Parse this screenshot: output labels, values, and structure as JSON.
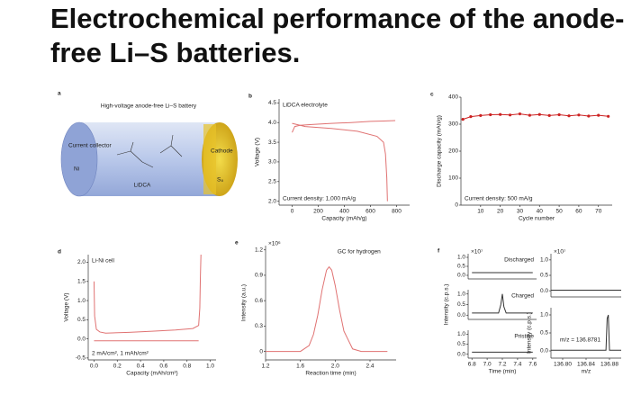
{
  "title": "Electrochemical performance of the anode-free Li–S batteries.",
  "diagram": {
    "panel": "a",
    "title": "High-voltage anode-free Li–S battery",
    "collector": "Current collector",
    "collector_metal": "Ni",
    "cathode": "Cathode",
    "cathode_material": "S₈",
    "salt": "LiDCA"
  },
  "chart_data": [
    {
      "type": "line",
      "panel": "b",
      "title": "LiDCA electrolyte",
      "annotation": "Current density: 1,000 mA/g",
      "xlabel": "Capacity (mAh/g)",
      "ylabel": "Voltage (V)",
      "xlim": [
        -100,
        900
      ],
      "ylim": [
        1.9,
        4.6
      ],
      "xticks": [
        0,
        200,
        400,
        600,
        800
      ],
      "yticks": [
        {
          "value": 2,
          "label": "2.0"
        },
        2.5,
        {
          "value": 3,
          "label": "3.0"
        },
        3.5,
        {
          "value": 4,
          "label": "4.0"
        },
        4.5
      ],
      "series": [
        {
          "color": "#e07272",
          "x": [
            0,
            20,
            60,
            150,
            300,
            450,
            600,
            700,
            790
          ],
          "values": [
            3.75,
            3.9,
            3.93,
            3.95,
            3.98,
            4.0,
            4.03,
            4.04,
            4.05
          ]
        },
        {
          "color": "#e07272",
          "x": [
            0,
            100,
            300,
            500,
            650,
            700,
            715,
            725,
            730
          ],
          "values": [
            3.98,
            3.9,
            3.85,
            3.78,
            3.65,
            3.5,
            3.2,
            2.6,
            2.0
          ]
        }
      ]
    },
    {
      "type": "line",
      "panel": "c",
      "annotation": "Current density: 500 mA/g",
      "xlabel": "Cycle number",
      "ylabel": "Discharge capacity (mAh/g)",
      "markers": true,
      "xlim": [
        0,
        77
      ],
      "ylim": [
        0,
        400
      ],
      "xticks": [
        10,
        20,
        30,
        40,
        50,
        60,
        70
      ],
      "yticks": [
        0,
        100,
        200,
        300,
        400
      ],
      "series": [
        {
          "color": "#cc2222",
          "x": [
            1,
            5,
            10,
            15,
            20,
            25,
            30,
            35,
            40,
            45,
            50,
            55,
            60,
            65,
            70,
            75
          ],
          "values": [
            318,
            328,
            332,
            335,
            336,
            334,
            338,
            333,
            336,
            332,
            335,
            331,
            334,
            330,
            333,
            329
          ]
        }
      ]
    },
    {
      "type": "line",
      "panel": "d",
      "title": "Li-Ni cell",
      "annotation": "2 mA/cm², 1 mAh/cm²",
      "xlabel": "Capacity (mAh/cm²)",
      "ylabel": "Voltage (V)",
      "xlim": [
        -0.05,
        1.05
      ],
      "ylim": [
        -0.55,
        2.2
      ],
      "xticks": [
        {
          "value": 0,
          "label": "0.0"
        },
        0.2,
        0.4,
        0.6,
        0.8,
        {
          "value": 1,
          "label": "1.0"
        }
      ],
      "yticks": [
        -0.5,
        {
          "value": 0,
          "label": "0.0"
        },
        0.5,
        {
          "value": 1,
          "label": "1.0"
        },
        1.5,
        {
          "value": 2,
          "label": "2.0"
        }
      ],
      "series": [
        {
          "color": "#e07272",
          "x": [
            0,
            0.005,
            0.02,
            0.05,
            0.1,
            0.3,
            0.5,
            0.7,
            0.85,
            0.9,
            0.91,
            0.915,
            0.92
          ],
          "values": [
            1.5,
            0.6,
            0.25,
            0.18,
            0.15,
            0.17,
            0.2,
            0.23,
            0.27,
            0.35,
            0.8,
            1.6,
            2.2
          ]
        },
        {
          "color": "#e07272",
          "x": [
            0,
            0.9
          ],
          "values": [
            -0.05,
            -0.05
          ]
        }
      ]
    },
    {
      "type": "line",
      "panel": "e",
      "title": "GC for hydrogen",
      "multiplier": "×10⁶",
      "xlabel": "Reaction time (min)",
      "ylabel": "Intensity (a.u.)",
      "xlim": [
        1.2,
        2.7
      ],
      "ylim": [
        -0.1,
        1.25
      ],
      "xticks": [
        1.2,
        1.6,
        {
          "value": 2,
          "label": "2.0"
        },
        2.4
      ],
      "yticks": [
        0,
        0.3,
        0.6,
        0.9,
        1.2
      ],
      "series": [
        {
          "color": "#e07272",
          "x": [
            1.2,
            1.4,
            1.6,
            1.7,
            1.75,
            1.8,
            1.85,
            1.9,
            1.93,
            1.96,
            2.0,
            2.05,
            2.1,
            2.2,
            2.3,
            2.6
          ],
          "values": [
            0,
            0,
            0,
            0.07,
            0.2,
            0.43,
            0.73,
            0.96,
            1.0,
            0.96,
            0.78,
            0.49,
            0.24,
            0.03,
            0,
            0
          ]
        }
      ]
    },
    {
      "type": "line",
      "panel": "f",
      "title": "Discharged",
      "multiplier": "×10⁷",
      "xlim": [
        6.75,
        7.65
      ],
      "ylim": [
        -0.2,
        1.2
      ],
      "yticks": [
        {
          "value": 0,
          "label": "0.0"
        },
        0.5,
        {
          "value": 1,
          "label": "1.0"
        }
      ],
      "series": [
        {
          "color": "#333333",
          "x": [
            6.8,
            7.6
          ],
          "values": [
            0.15,
            0.15
          ]
        }
      ]
    },
    {
      "type": "line",
      "title": "Charged",
      "ylabel": "Intensity (c.p.s.)",
      "xlim": [
        6.75,
        7.65
      ],
      "ylim": [
        -0.2,
        1.2
      ],
      "yticks": [
        {
          "value": 0,
          "label": "0.0"
        },
        0.5,
        {
          "value": 1,
          "label": "1.0"
        }
      ],
      "series": [
        {
          "color": "#333333",
          "x": [
            6.8,
            7.15,
            7.18,
            7.2,
            7.22,
            7.25,
            7.6
          ],
          "values": [
            0.1,
            0.1,
            0.5,
            1.0,
            0.4,
            0.1,
            0.1
          ]
        }
      ]
    },
    {
      "type": "line",
      "title": "Pristine",
      "xlabel": "Time (min)",
      "xlim": [
        6.75,
        7.65
      ],
      "ylim": [
        -0.2,
        1.2
      ],
      "xticks": [
        6.8,
        {
          "value": 7,
          "label": "7.0"
        },
        7.2,
        7.4,
        7.6
      ],
      "yticks": [
        {
          "value": 0,
          "label": "0.0"
        },
        0.5,
        {
          "value": 1,
          "label": "1.0"
        }
      ],
      "series": [
        {
          "color": "#333333",
          "x": [
            6.8,
            7.6
          ],
          "values": [
            0.1,
            0.1
          ]
        }
      ]
    },
    {
      "type": "line",
      "multiplier": "×10⁷",
      "xlim": [
        136.78,
        136.9
      ],
      "ylim": [
        -0.2,
        1.2
      ],
      "yticks": [
        {
          "value": 0,
          "label": "0.0"
        },
        0.5,
        {
          "value": 1,
          "label": "1.0"
        }
      ],
      "series": [
        {
          "color": "#333333",
          "x": [
            136.78,
            136.9
          ],
          "values": [
            0.02,
            0.02
          ]
        }
      ]
    },
    {
      "type": "line",
      "annotation": "m/z = 136.8781",
      "xlabel": "m/z",
      "ylabel": "Intensity (c.p.s.)",
      "xlim": [
        136.78,
        136.9
      ],
      "ylim": [
        -0.2,
        1.2
      ],
      "xticks": [
        {
          "value": 136.8,
          "label": "136.80"
        },
        136.84,
        136.88
      ],
      "yticks": [
        {
          "value": 0,
          "label": "0.0"
        },
        0.5,
        {
          "value": 1,
          "label": "1.0"
        }
      ],
      "series": [
        {
          "color": "#333333",
          "x": [
            136.78,
            136.874,
            136.876,
            136.878,
            136.88,
            136.9
          ],
          "values": [
            0.02,
            0.02,
            0.9,
            1.0,
            0.02,
            0.02
          ]
        }
      ]
    }
  ]
}
